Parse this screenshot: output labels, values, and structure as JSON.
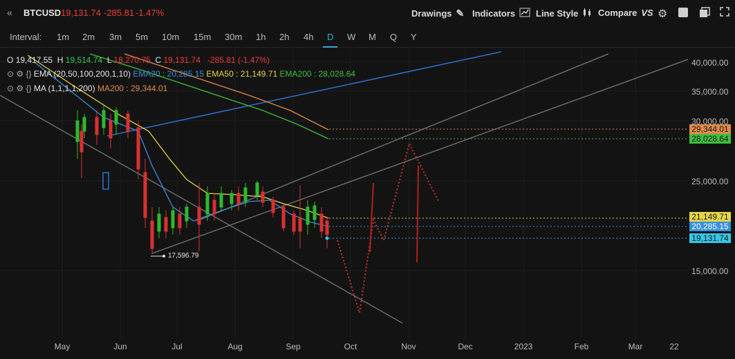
{
  "header": {
    "collapse_icon": "double-chevron-left-icon",
    "symbol": "BTCUSD",
    "last": "19,131.74",
    "change": "-285.81",
    "change_pct": "-1.47%",
    "drawings_label": "Drawings",
    "indicators_label": "Indicators",
    "linestyle_label": "Line Style",
    "compare_label": "Compare",
    "compare_badge": "VS"
  },
  "intervals": {
    "label": "Interval:",
    "items": [
      "1m",
      "2m",
      "3m",
      "5m",
      "10m",
      "15m",
      "30m",
      "1h",
      "2h",
      "4h",
      "D",
      "W",
      "M",
      "Q",
      "Y"
    ],
    "active": "D"
  },
  "ohlc": {
    "o_label": "O",
    "o": "19,417.55",
    "h_label": "H",
    "h": "19,514.74",
    "l_label": "L",
    "l": "18,270.75",
    "c_label": "C",
    "c": "19,131.74",
    "chg": "-285.81 (-1.47%)"
  },
  "studies": {
    "ema_name": "EMA (20,50,100,200,1,10)",
    "ema20": "EMA20 : 20,285.15",
    "ema50": "EMA50 : 21,149.71",
    "ema200": "EMA200 : 28,028.64",
    "ma_name": "MA (1,1,1,1,200)",
    "ma200": "MA200 : 29,344.01"
  },
  "annotation_low": "17,596.79",
  "price_axis": {
    "ticks": [
      "40,000.00",
      "35,000.00",
      "30,000.00",
      "25,000.00",
      "15,000.00"
    ],
    "labels": {
      "ma200": "29,344.01",
      "ema200": "28,028.64",
      "ema50": "21,149.71",
      "ema20": "20,285.15",
      "last": "19,131.74"
    }
  },
  "time_axis": [
    "May",
    "Jun",
    "Jul",
    "Aug",
    "Sep",
    "Oct",
    "Nov",
    "Dec",
    "2023",
    "Feb",
    "Mar",
    "22"
  ],
  "colors": {
    "background": "#131313",
    "up": "#2eb82e",
    "down": "#d93030",
    "ema20": "#3a8fd9",
    "ema50": "#e6d64a",
    "ema200": "#3fbf3f",
    "ma200": "#e08a4a",
    "accent": "#35a7e0",
    "projection": "#d03030"
  }
}
